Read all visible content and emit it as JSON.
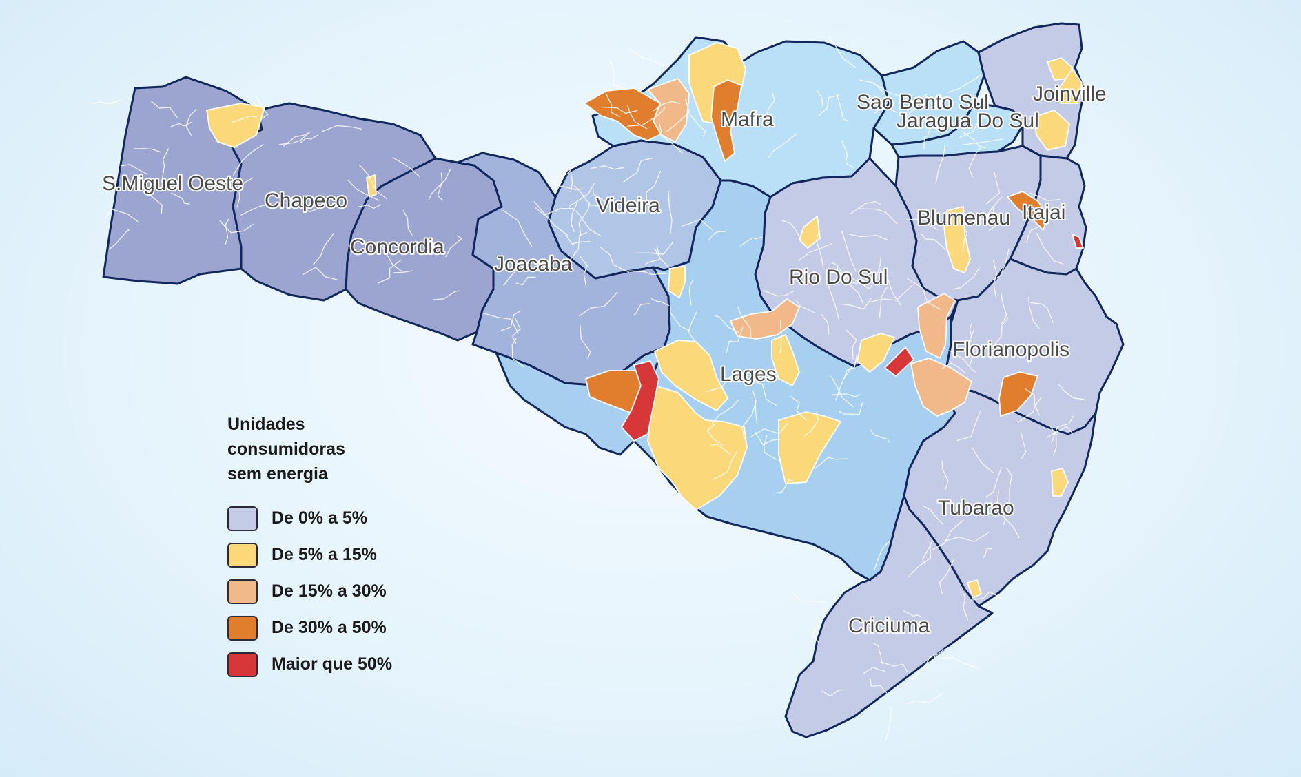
{
  "colors": {
    "c1": "#c3cbe6",
    "c2": "#fbd97a",
    "c3": "#f1b98a",
    "c4": "#e07e2e",
    "c5": "#d8373a",
    "west": "#9ba5cf",
    "west2": "#a3b4dc",
    "mid": "#b1c6e6",
    "light": "#b9e0f6",
    "serra": "#a6cff0",
    "coast": "#c3cbe6",
    "border": "#12275c"
  },
  "legend": {
    "title": [
      "Unidades",
      "consumidoras",
      "sem energia"
    ],
    "items": [
      {
        "label": "De 0% a 5%"
      },
      {
        "label": "De 5% a 15%"
      },
      {
        "label": "De 15% a 30%"
      },
      {
        "label": "De 30% a 50%"
      },
      {
        "label": "Maior que 50%"
      }
    ]
  },
  "regions": [
    {
      "label": "S.Miguel Oeste"
    },
    {
      "label": "Chapeco"
    },
    {
      "label": "Concordia"
    },
    {
      "label": "Joacaba"
    },
    {
      "label": "Videira"
    },
    {
      "label": "Mafra"
    },
    {
      "label": "Sao Bento Sul"
    },
    {
      "label": "Jaragua Do Sul"
    },
    {
      "label": "Joinville"
    },
    {
      "label": "Blumenau"
    },
    {
      "label": "Itajai"
    },
    {
      "label": "Rio Do Sul"
    },
    {
      "label": "Florianopolis"
    },
    {
      "label": "Lages"
    },
    {
      "label": "Tubarao"
    },
    {
      "label": "Criciuma"
    }
  ]
}
